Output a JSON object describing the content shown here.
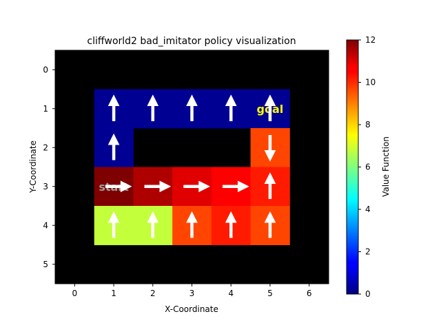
{
  "chart_data": {
    "type": "heatmap",
    "title": "cliffworld2 bad_imitator policy visualization",
    "xlabel": "X-Coordinate",
    "ylabel": "Y-Coordinate",
    "x_ticks": [
      "0",
      "1",
      "2",
      "3",
      "4",
      "5",
      "6"
    ],
    "y_ticks": [
      "0",
      "1",
      "2",
      "3",
      "4",
      "5"
    ],
    "xlim": [
      -0.5,
      6.5
    ],
    "ylim": [
      5.5,
      -0.5
    ],
    "grid": false,
    "colormap": "jet",
    "colorbar": {
      "label": "Value Function",
      "min": 0,
      "max": 12,
      "ticks": [
        "0",
        "2",
        "4",
        "6",
        "8",
        "10",
        "12"
      ]
    },
    "background_color": "#000000",
    "cells": [
      {
        "x": 1,
        "y": 1,
        "value": 0.2,
        "action": "up"
      },
      {
        "x": 2,
        "y": 1,
        "value": 0.2,
        "action": "up"
      },
      {
        "x": 3,
        "y": 1,
        "value": 0.2,
        "action": "up"
      },
      {
        "x": 4,
        "y": 1,
        "value": 0.2,
        "action": "up"
      },
      {
        "x": 5,
        "y": 1,
        "value": 0.2,
        "action": "up"
      },
      {
        "x": 1,
        "y": 2,
        "value": 0.2,
        "action": "up"
      },
      {
        "x": 5,
        "y": 2,
        "value": 9.7,
        "action": "down"
      },
      {
        "x": 1,
        "y": 3,
        "value": 12.0,
        "action": "right"
      },
      {
        "x": 2,
        "y": 3,
        "value": 11.5,
        "action": "right"
      },
      {
        "x": 3,
        "y": 3,
        "value": 11.0,
        "action": "right"
      },
      {
        "x": 4,
        "y": 3,
        "value": 10.7,
        "action": "right"
      },
      {
        "x": 5,
        "y": 3,
        "value": 10.2,
        "action": "up"
      },
      {
        "x": 1,
        "y": 4,
        "value": 6.8,
        "action": "up"
      },
      {
        "x": 2,
        "y": 4,
        "value": 6.8,
        "action": "up"
      },
      {
        "x": 3,
        "y": 4,
        "value": 9.7,
        "action": "up"
      },
      {
        "x": 4,
        "y": 4,
        "value": 10.2,
        "action": "up"
      },
      {
        "x": 5,
        "y": 4,
        "value": 9.7,
        "action": "up"
      }
    ],
    "annotations": [
      {
        "text": "goal",
        "x": 5,
        "y": 1,
        "color": "#ffff00"
      },
      {
        "text": "start",
        "x": 1,
        "y": 3,
        "color": "#9e9e9e"
      }
    ]
  }
}
